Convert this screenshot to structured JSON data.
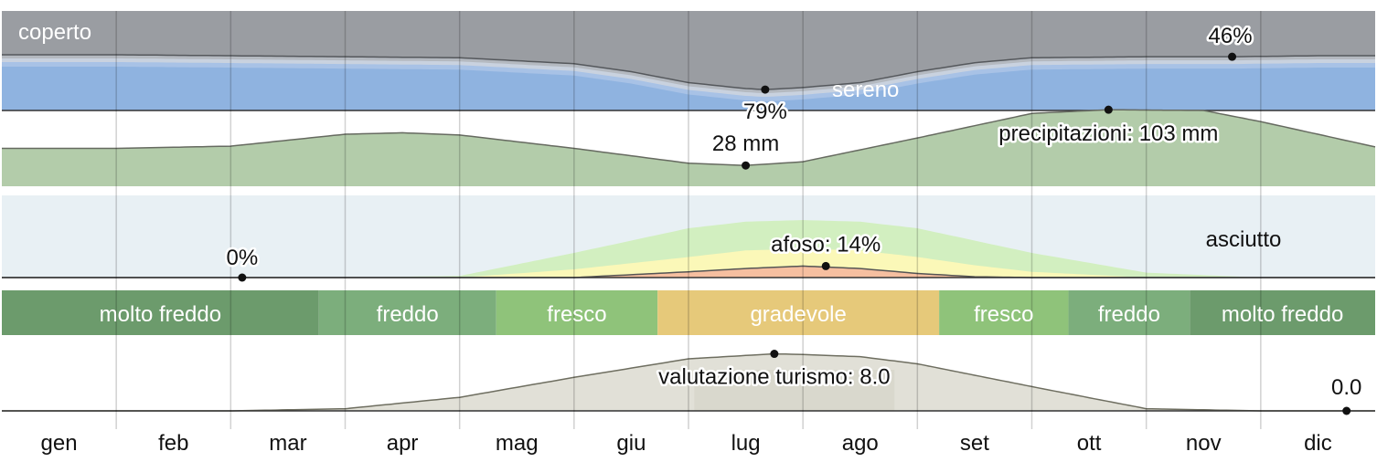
{
  "months": [
    "gen",
    "feb",
    "mar",
    "apr",
    "mag",
    "giu",
    "lug",
    "ago",
    "set",
    "ott",
    "nov",
    "dic"
  ],
  "colors": {
    "cloud_top": "#9a9da2",
    "clear_sky": "#8fb3e0",
    "precip_fill": "#b3ccaa",
    "muggy_bg": "#e8f0f4",
    "muggy_green": "#d2efc0",
    "muggy_yellow": "#fbf8b8",
    "muggy_orange": "#f6bfa0",
    "tourism_fill": "#dcdbd0",
    "very_cold": "#6c9b6c",
    "cold": "#7cae7c",
    "cool": "#8fc37a",
    "comfortable": "#e6c97a"
  },
  "chart_data": [
    {
      "type": "area",
      "name": "clouds",
      "labels": {
        "top": "coperto",
        "bottom": "sereno"
      },
      "annotations": [
        {
          "month_pos": 6.67,
          "value": 79,
          "text": "79%"
        },
        {
          "month_pos": 10.75,
          "value": 46,
          "text": "46%"
        }
      ],
      "x": [
        0.0,
        1.0,
        2.0,
        3.0,
        4.0,
        5.0,
        5.5,
        6.0,
        6.5,
        6.67,
        7.0,
        7.5,
        8.0,
        8.5,
        9.0,
        10.0,
        10.75,
        11.5,
        12.0
      ],
      "cloud_pct": [
        44,
        44,
        45,
        46,
        47,
        53,
        61,
        72,
        78,
        79,
        77,
        72,
        61,
        52,
        47,
        46,
        46,
        45,
        45
      ]
    },
    {
      "type": "area",
      "name": "precipitation",
      "annotations": [
        {
          "month_pos": 6.5,
          "value": 28,
          "text": "28 mm"
        },
        {
          "month_pos": 9.67,
          "value": 103,
          "text": "precipitazioni: 103 mm"
        }
      ],
      "x": [
        0.0,
        1.0,
        2.0,
        3.0,
        3.5,
        4.0,
        5.0,
        6.0,
        6.5,
        7.0,
        8.0,
        9.0,
        9.67,
        10.5,
        11.0,
        12.0
      ],
      "precip_mm": [
        51,
        51,
        54,
        70,
        72,
        69,
        51,
        31,
        28,
        33,
        65,
        98,
        103,
        102,
        87,
        53
      ]
    },
    {
      "type": "area",
      "name": "humidity",
      "labels": {
        "dry": "asciutto"
      },
      "annotations": [
        {
          "month_pos": 2.1,
          "value": 0,
          "text": "0%"
        },
        {
          "month_pos": 7.2,
          "value": 14,
          "text": "afoso: 14%"
        }
      ],
      "x": [
        0.0,
        1.0,
        2.0,
        3.0,
        4.0,
        5.0,
        6.0,
        6.5,
        7.0,
        7.5,
        8.0,
        8.5,
        9.0,
        10.0,
        11.0,
        12.0
      ],
      "comfortable_pct": [
        0,
        0,
        0,
        0,
        2,
        30,
        60,
        68,
        70,
        68,
        60,
        45,
        30,
        6,
        0,
        0
      ],
      "humid_pct": [
        0,
        0,
        0,
        0,
        0,
        10,
        25,
        33,
        35,
        33,
        25,
        15,
        7,
        0,
        0,
        0
      ],
      "muggy_pct": [
        0,
        0,
        0,
        0,
        0,
        0,
        7,
        11,
        14,
        11,
        5,
        1,
        0,
        0,
        0,
        0
      ]
    },
    {
      "type": "bar",
      "name": "temperature_bands",
      "bands": [
        {
          "label": "molto freddo",
          "start": 0.0,
          "end": 2.77,
          "color_key": "very_cold"
        },
        {
          "label": "freddo",
          "start": 2.77,
          "end": 4.32,
          "color_key": "cold"
        },
        {
          "label": "fresco",
          "start": 4.32,
          "end": 5.73,
          "color_key": "cool"
        },
        {
          "label": "gradevole",
          "start": 5.73,
          "end": 8.19,
          "color_key": "comfortable"
        },
        {
          "label": "fresco",
          "start": 8.19,
          "end": 9.32,
          "color_key": "cool"
        },
        {
          "label": "freddo",
          "start": 9.32,
          "end": 10.38,
          "color_key": "cold"
        },
        {
          "label": "molto freddo",
          "start": 10.38,
          "end": 12.0,
          "color_key": "very_cold"
        }
      ]
    },
    {
      "type": "area",
      "name": "tourism",
      "best_period": {
        "start": 6.05,
        "end": 7.8
      },
      "annotations": [
        {
          "month_pos": 6.75,
          "value": 8.0,
          "text": "valutazione turismo: 8.0"
        },
        {
          "month_pos": 11.75,
          "value": 0.0,
          "text": "0.0"
        }
      ],
      "x": [
        0.0,
        1.0,
        2.0,
        3.0,
        4.0,
        5.0,
        6.0,
        6.75,
        7.0,
        7.5,
        8.0,
        9.0,
        10.0,
        11.0,
        12.0
      ],
      "score": [
        0.0,
        0.0,
        0.0,
        0.3,
        1.9,
        4.7,
        7.3,
        8.0,
        7.9,
        7.6,
        6.6,
        3.4,
        0.3,
        0.0,
        0.0
      ]
    }
  ]
}
